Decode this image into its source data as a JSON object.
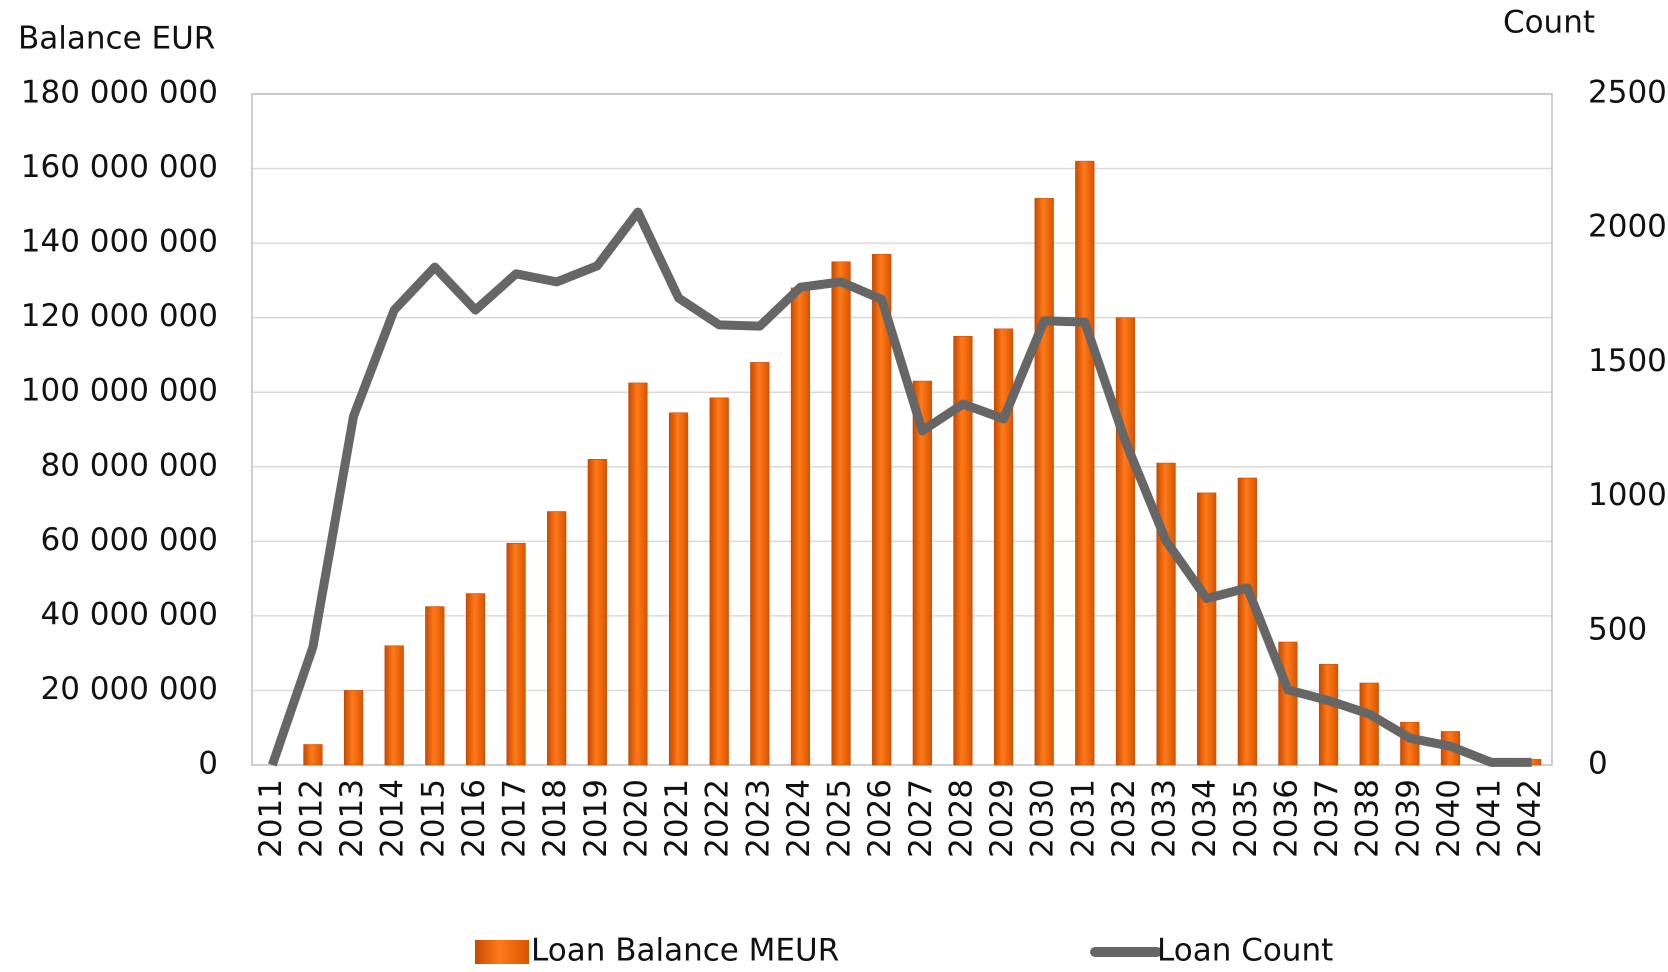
{
  "chart_data": {
    "type": "bar_line",
    "ylabel": "Balance EUR",
    "y2label": "Count",
    "categories": [
      "2011",
      "2012",
      "2013",
      "2014",
      "2015",
      "2016",
      "2017",
      "2018",
      "2019",
      "2020",
      "2021",
      "2022",
      "2023",
      "2024",
      "2025",
      "2026",
      "2027",
      "2028",
      "2029",
      "2030",
      "2031",
      "2032",
      "2033",
      "2034",
      "2035",
      "2036",
      "2037",
      "2038",
      "2039",
      "2040",
      "2041",
      "2042"
    ],
    "series": [
      {
        "name": "Loan Balance MEUR",
        "type": "bar",
        "color": "#f26a10",
        "values": [
          0,
          5500000,
          20000000,
          32000000,
          42500000,
          46000000,
          59500000,
          68000000,
          82000000,
          102500000,
          94500000,
          98500000,
          108000000,
          128000000,
          135000000,
          137000000,
          103000000,
          115000000,
          117000000,
          152000000,
          162000000,
          120000000,
          81000000,
          73000000,
          77000000,
          33000000,
          27000000,
          22000000,
          11500000,
          9000000,
          0,
          1500000
        ]
      },
      {
        "name": "Loan Count",
        "type": "line",
        "axis": "y2",
        "color": "#666666",
        "values": [
          0,
          440,
          1300,
          1695,
          1855,
          1695,
          1830,
          1800,
          1860,
          2060,
          1740,
          1640,
          1635,
          1780,
          1800,
          1735,
          1245,
          1345,
          1290,
          1655,
          1650,
          1205,
          835,
          620,
          660,
          280,
          240,
          190,
          100,
          70,
          10,
          10
        ]
      }
    ],
    "ylim": [
      0,
      180000000
    ],
    "yticks": [
      {
        "value": 0,
        "label": "0"
      },
      {
        "value": 20000000,
        "label": "20 000 000"
      },
      {
        "value": 40000000,
        "label": "40 000 000"
      },
      {
        "value": 60000000,
        "label": "60 000 000"
      },
      {
        "value": 80000000,
        "label": "80 000 000"
      },
      {
        "value": 100000000,
        "label": "100 000 000"
      },
      {
        "value": 120000000,
        "label": "120 000 000"
      },
      {
        "value": 140000000,
        "label": "140 000 000"
      },
      {
        "value": 160000000,
        "label": "160 000 000"
      },
      {
        "value": 180000000,
        "label": "180 000 000"
      }
    ],
    "y2lim": [
      0,
      2500
    ],
    "y2ticks": [
      0,
      500,
      1000,
      1500,
      2000,
      2500
    ],
    "grid": true,
    "legend": "bottom"
  }
}
